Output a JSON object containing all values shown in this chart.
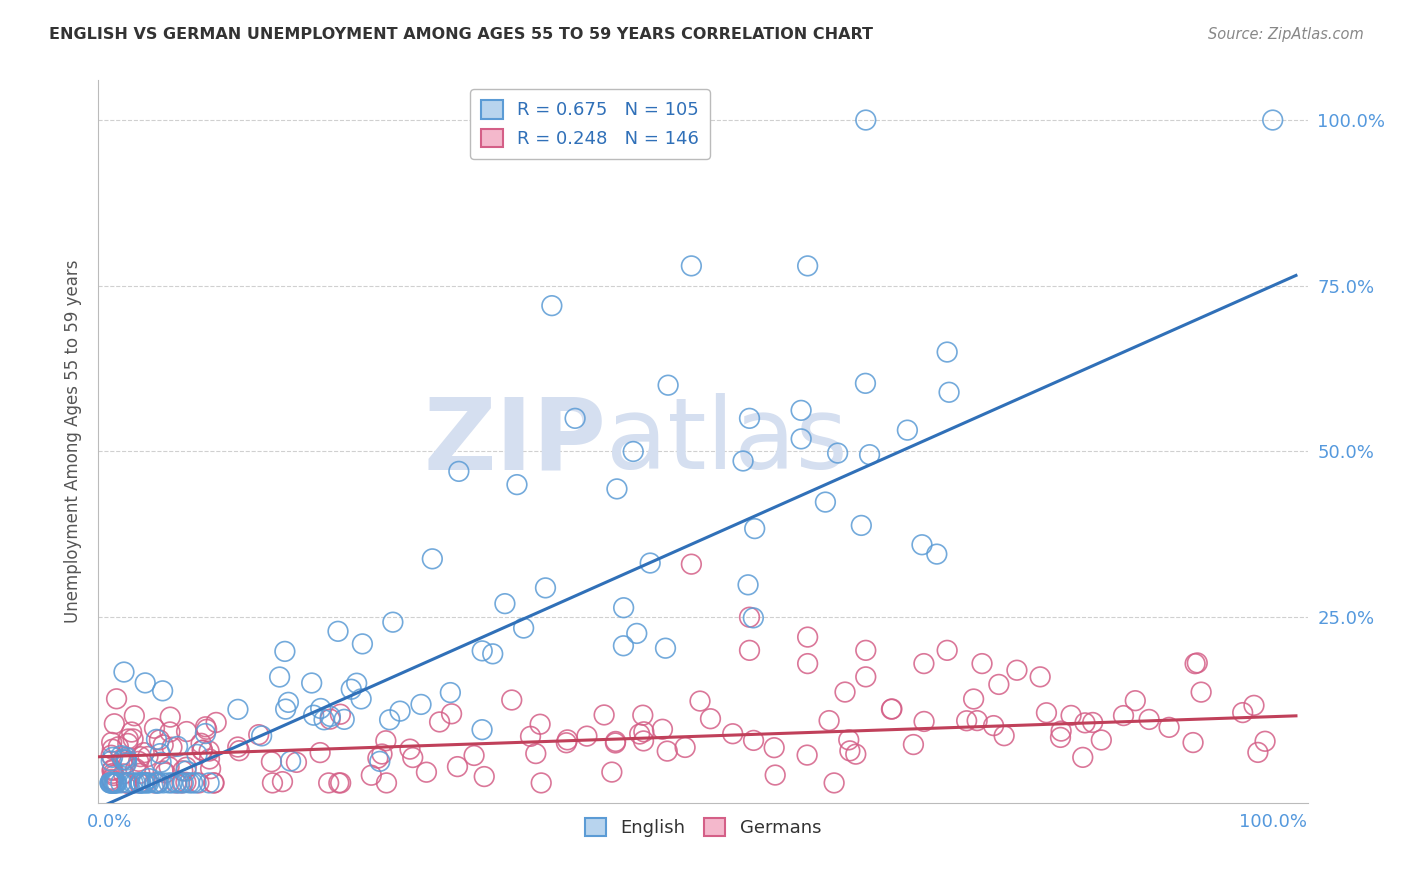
{
  "title": "ENGLISH VS GERMAN UNEMPLOYMENT AMONG AGES 55 TO 59 YEARS CORRELATION CHART",
  "source": "Source: ZipAtlas.com",
  "ylabel": "Unemployment Among Ages 55 to 59 years",
  "legend_english": "English",
  "legend_german": "Germans",
  "english_R": 0.675,
  "english_N": 105,
  "german_R": 0.248,
  "german_N": 146,
  "english_fill_color": "#b8d4ee",
  "english_edge_color": "#5b9bd5",
  "german_fill_color": "#f4b8cc",
  "german_edge_color": "#d45f87",
  "english_line_color": "#3070b8",
  "german_line_color": "#c0405a",
  "background_color": "#ffffff",
  "grid_color": "#d0d0d0",
  "watermark_ZIP": "ZIP",
  "watermark_atlas": "atlas",
  "watermark_color": "#d5dff0",
  "title_color": "#333333",
  "source_color": "#888888",
  "tick_color": "#5599dd",
  "ylabel_color": "#555555",
  "eng_line_slope": 0.78,
  "eng_line_intercept": -0.03,
  "ger_line_slope": 0.06,
  "ger_line_intercept": 0.04
}
